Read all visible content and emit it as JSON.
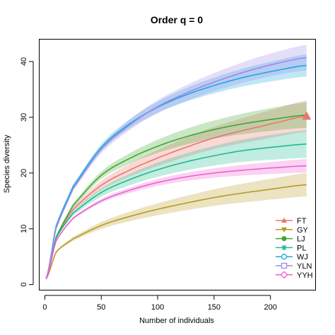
{
  "chart_data": {
    "type": "line",
    "title": "Order q = 0",
    "xlabel": "Number of individuals",
    "ylabel": "Species diversity",
    "xlim": [
      -5,
      240
    ],
    "ylim": [
      -1,
      44
    ],
    "xticks": [
      0,
      50,
      100,
      150,
      200
    ],
    "yticks": [
      0,
      10,
      20,
      30,
      40
    ],
    "legend_position": "bottom-right",
    "series": [
      {
        "name": "FT",
        "color": "#E8776D",
        "marker": "triangle",
        "x": [
          1,
          10,
          25,
          50,
          75,
          100,
          125,
          150,
          175,
          200,
          232
        ],
        "y": [
          1,
          8.5,
          13.5,
          17.8,
          20.5,
          22.7,
          24.6,
          26.3,
          27.6,
          28.8,
          30.2
        ],
        "band": 2.8,
        "endpoint": [
          232,
          30.2
        ]
      },
      {
        "name": "GY",
        "color": "#B79A21",
        "marker": "triangle-down",
        "x": [
          1,
          10,
          25,
          50,
          75,
          100,
          125,
          150,
          175,
          200,
          232
        ],
        "y": [
          1,
          5.8,
          8.2,
          10.6,
          12.2,
          13.5,
          14.6,
          15.6,
          16.4,
          17.1,
          17.9
        ],
        "band": 2.1
      },
      {
        "name": "LJ",
        "color": "#3FA62F",
        "marker": "circle",
        "x": [
          1,
          10,
          25,
          50,
          75,
          100,
          125,
          150,
          175,
          200,
          232
        ],
        "y": [
          1,
          8.5,
          14.2,
          19.6,
          22.6,
          24.8,
          26.5,
          27.8,
          28.8,
          29.6,
          30.4
        ],
        "band": 2.3
      },
      {
        "name": "PL",
        "color": "#1FB98E",
        "marker": "asterisk",
        "x": [
          1,
          10,
          25,
          50,
          75,
          100,
          125,
          150,
          175,
          200,
          232
        ],
        "y": [
          1,
          8.3,
          12.8,
          16.5,
          18.8,
          20.6,
          22.0,
          23.1,
          24.0,
          24.6,
          25.2
        ],
        "band": 2.5
      },
      {
        "name": "WJ",
        "color": "#1AA8E0",
        "marker": "circle-open",
        "x": [
          1,
          10,
          25,
          50,
          75,
          100,
          125,
          150,
          175,
          200,
          232
        ],
        "y": [
          1,
          10.5,
          17.6,
          24.6,
          28.8,
          31.8,
          34.0,
          35.7,
          37.1,
          38.2,
          39.3
        ],
        "band": 2.0
      },
      {
        "name": "YLN",
        "color": "#9D88E8",
        "marker": "square",
        "x": [
          1,
          10,
          25,
          50,
          75,
          100,
          125,
          150,
          175,
          200,
          232
        ],
        "y": [
          1,
          10.1,
          17.2,
          24.2,
          28.6,
          31.9,
          34.3,
          36.3,
          38.0,
          39.4,
          40.7
        ],
        "band": 2.3
      },
      {
        "name": "YYH",
        "color": "#EE5FCF",
        "marker": "diamond",
        "x": [
          1,
          10,
          25,
          50,
          75,
          100,
          125,
          150,
          175,
          200,
          232
        ],
        "y": [
          1,
          7.8,
          11.9,
          15.0,
          16.9,
          18.3,
          19.3,
          20.0,
          20.5,
          20.9,
          21.3
        ],
        "band": 1.2
      }
    ]
  }
}
